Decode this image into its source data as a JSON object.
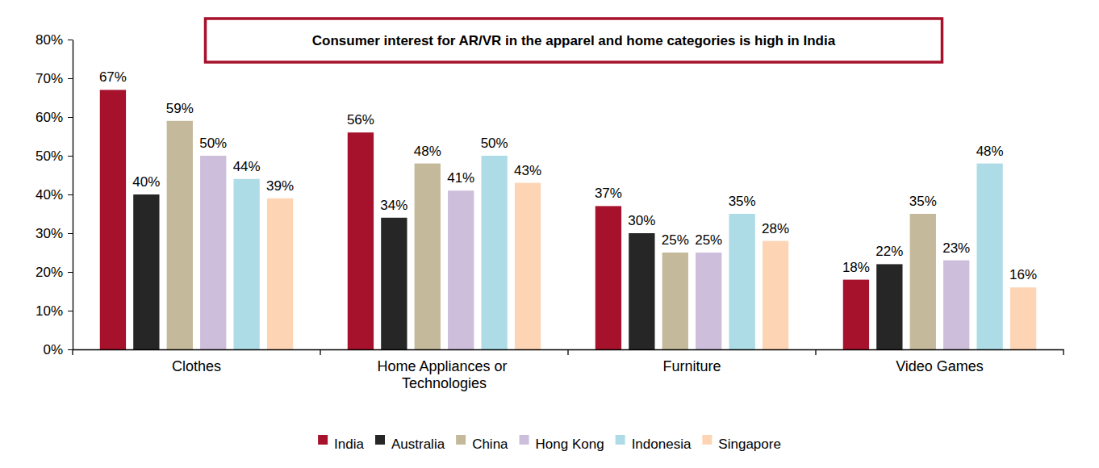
{
  "chart_data": {
    "type": "bar",
    "title": "Consumer interest for AR/VR in the apparel and home categories is high in India",
    "categories": [
      "Clothes",
      "Home Appliances or Technologies",
      "Furniture",
      "Video Games"
    ],
    "series": [
      {
        "name": "India",
        "color": "#A6112B",
        "values": [
          67,
          56,
          37,
          18
        ],
        "value_labels": [
          "67%",
          "56%",
          "37%",
          "18%"
        ]
      },
      {
        "name": "Australia",
        "color": "#262626",
        "values": [
          40,
          34,
          30,
          22
        ],
        "value_labels": [
          "40%",
          "34%",
          "30%",
          "22%"
        ]
      },
      {
        "name": "China",
        "color": "#C4B99A",
        "values": [
          59,
          48,
          25,
          35
        ],
        "value_labels": [
          "59%",
          "48%",
          "25%",
          "35%"
        ]
      },
      {
        "name": "Hong Kong",
        "color": "#CDBFDB",
        "values": [
          50,
          41,
          25,
          23
        ],
        "value_labels": [
          "50%",
          "41%",
          "25%",
          "23%"
        ]
      },
      {
        "name": "Indonesia",
        "color": "#ADDCE6",
        "values": [
          44,
          50,
          35,
          48
        ],
        "value_labels": [
          "44%",
          "50%",
          "35%",
          "48%"
        ]
      },
      {
        "name": "Singapore",
        "color": "#FDD5B4",
        "values": [
          39,
          43,
          28,
          16
        ],
        "value_labels": [
          "39%",
          "43%",
          "28%",
          "16%"
        ]
      }
    ],
    "ylim": [
      0,
      80
    ],
    "yticks": [
      {
        "value": 0,
        "label": "0%"
      },
      {
        "value": 10,
        "label": "10%"
      },
      {
        "value": 20,
        "label": "20%"
      },
      {
        "value": 30,
        "label": "30%"
      },
      {
        "value": 40,
        "label": "40%"
      },
      {
        "value": 50,
        "label": "50%"
      },
      {
        "value": 60,
        "label": "60%"
      },
      {
        "value": 70,
        "label": "70%"
      },
      {
        "value": 80,
        "label": "80%"
      }
    ],
    "grid": false,
    "legend": "bottom",
    "data_labels": true
  }
}
